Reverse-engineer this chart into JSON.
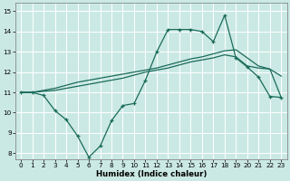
{
  "xlabel": "Humidex (Indice chaleur)",
  "background_color": "#cbe9e4",
  "grid_color": "#ffffff",
  "line_color": "#1a6b5a",
  "xlim": [
    -0.5,
    23.5
  ],
  "ylim": [
    7.7,
    15.4
  ],
  "x_ticks": [
    0,
    1,
    2,
    3,
    4,
    5,
    6,
    7,
    8,
    9,
    10,
    11,
    12,
    13,
    14,
    15,
    16,
    17,
    18,
    19,
    20,
    21,
    22,
    23
  ],
  "y_ticks": [
    8,
    9,
    10,
    11,
    12,
    13,
    14,
    15
  ],
  "line1_x": [
    0,
    1,
    2,
    3,
    4,
    5,
    6,
    7,
    8,
    9,
    10,
    11,
    12,
    13,
    14,
    15,
    16,
    17,
    18,
    19,
    20,
    21,
    22,
    23
  ],
  "line1_y": [
    11.0,
    11.0,
    10.85,
    10.1,
    9.65,
    8.85,
    7.8,
    8.35,
    9.6,
    10.35,
    10.45,
    11.6,
    13.0,
    14.1,
    14.1,
    14.1,
    14.0,
    13.5,
    14.8,
    12.7,
    12.25,
    11.75,
    10.8,
    10.75
  ],
  "line2_x": [
    0,
    1,
    2,
    3,
    4,
    5,
    6,
    7,
    8,
    9,
    10,
    11,
    12,
    13,
    14,
    15,
    16,
    17,
    18,
    19,
    20,
    21,
    22,
    23
  ],
  "line2_y": [
    11.0,
    11.0,
    11.05,
    11.1,
    11.2,
    11.3,
    11.4,
    11.5,
    11.6,
    11.7,
    11.85,
    12.0,
    12.1,
    12.2,
    12.35,
    12.5,
    12.6,
    12.7,
    12.85,
    12.75,
    12.3,
    12.2,
    12.15,
    10.75
  ],
  "line3_x": [
    0,
    1,
    2,
    3,
    4,
    5,
    6,
    7,
    8,
    9,
    10,
    11,
    12,
    13,
    14,
    15,
    16,
    17,
    18,
    19,
    20,
    21,
    22,
    23
  ],
  "line3_y": [
    11.0,
    11.0,
    11.1,
    11.2,
    11.35,
    11.5,
    11.6,
    11.7,
    11.8,
    11.9,
    12.0,
    12.1,
    12.2,
    12.35,
    12.5,
    12.65,
    12.75,
    12.9,
    13.05,
    13.1,
    12.7,
    12.3,
    12.15,
    11.8
  ],
  "line_width": 0.9,
  "marker_size": 3.5,
  "tick_fontsize": 5.2,
  "xlabel_fontsize": 6.2
}
